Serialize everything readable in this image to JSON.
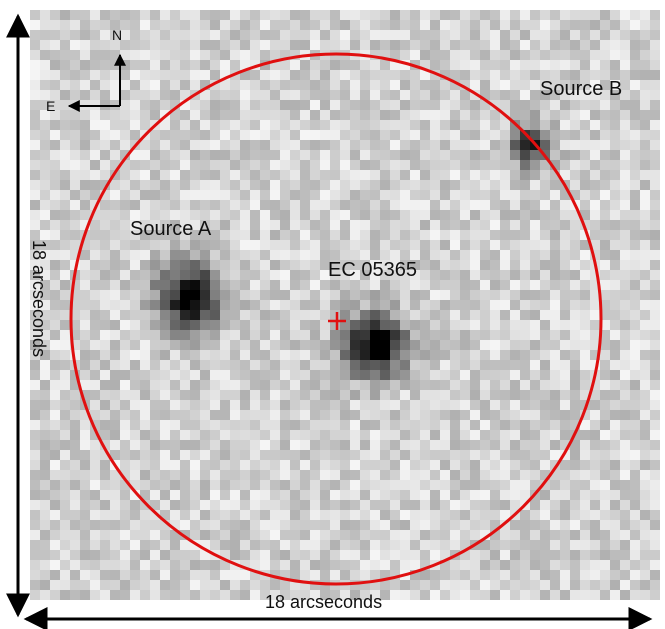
{
  "labels": {
    "source_a": "Source A",
    "source_b": "Source B",
    "target": "EC 05365",
    "scale_horizontal": "18 arcseconds",
    "scale_vertical": "18 arcseconds"
  },
  "compass": {
    "north": "N",
    "east": "E"
  },
  "colors": {
    "aperture_circle": "#e01010",
    "target_marker": "#e01010",
    "axes": "#000000"
  },
  "icons": {
    "target_marker": "plus",
    "compass": "orientation-arrows"
  }
}
